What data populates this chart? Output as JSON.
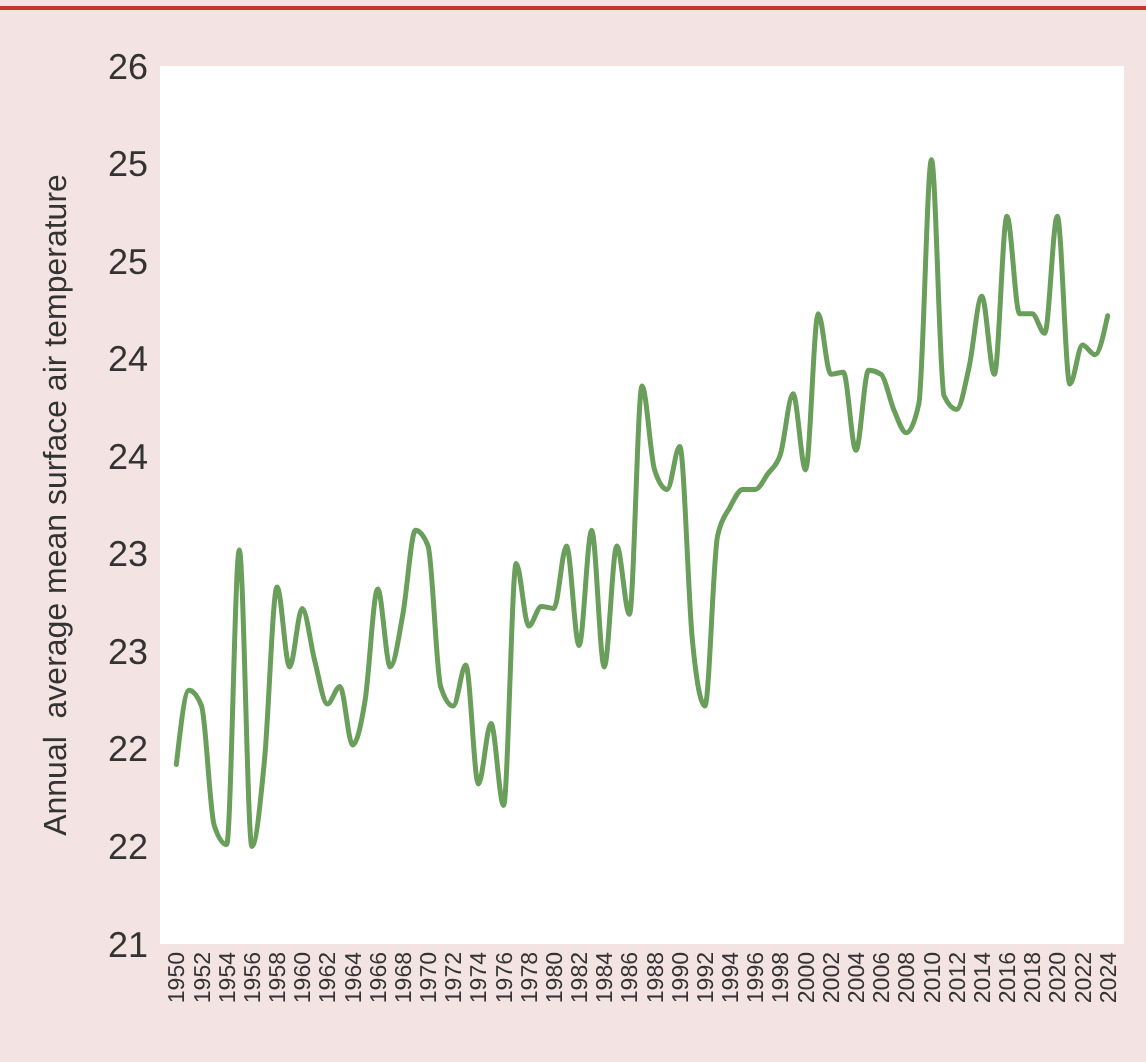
{
  "chart_data": {
    "type": "line",
    "ylabel": "Annual  average mean surface air temperature",
    "x": [
      1950,
      1951,
      1952,
      1953,
      1954,
      1955,
      1956,
      1957,
      1958,
      1959,
      1960,
      1961,
      1962,
      1963,
      1964,
      1965,
      1966,
      1967,
      1968,
      1969,
      1970,
      1971,
      1972,
      1973,
      1974,
      1975,
      1976,
      1977,
      1978,
      1979,
      1980,
      1981,
      1982,
      1983,
      1984,
      1985,
      1986,
      1987,
      1988,
      1989,
      1990,
      1991,
      1992,
      1993,
      1994,
      1995,
      1996,
      1997,
      1998,
      1999,
      2000,
      2001,
      2002,
      2003,
      2004,
      2005,
      2006,
      2007,
      2008,
      2009,
      2010,
      2011,
      2012,
      2013,
      2014,
      2015,
      2016,
      2017,
      2018,
      2019,
      2020,
      2021,
      2022,
      2023,
      2024
    ],
    "series": [
      {
        "color": "#6a9e5b",
        "values": [
          21.92,
          22.3,
          22.22,
          21.61,
          21.51,
          23.02,
          21.5,
          21.94,
          22.83,
          22.42,
          22.72,
          22.45,
          22.23,
          22.32,
          22.02,
          22.25,
          22.82,
          22.42,
          22.69,
          23.12,
          23.04,
          22.32,
          22.22,
          22.43,
          21.82,
          22.13,
          21.71,
          22.95,
          22.63,
          22.73,
          22.72,
          23.04,
          22.53,
          23.12,
          22.42,
          23.04,
          22.69,
          23.86,
          23.43,
          23.33,
          23.55,
          22.56,
          22.22,
          23.09,
          23.24,
          23.33,
          23.33,
          23.41,
          23.51,
          23.82,
          23.43,
          24.23,
          23.92,
          23.93,
          23.53,
          23.94,
          23.92,
          23.74,
          23.62,
          23.77,
          25.02,
          23.81,
          23.74,
          23.96,
          24.32,
          23.92,
          24.73,
          24.23,
          24.23,
          24.13,
          24.73,
          23.87,
          24.07,
          24.02,
          24.22
        ]
      }
    ],
    "xlim": [
      1948.7,
      2025.3
    ],
    "xticks": [
      1950,
      1952,
      1954,
      1956,
      1958,
      1960,
      1962,
      1964,
      1966,
      1968,
      1970,
      1972,
      1974,
      1976,
      1978,
      1980,
      1982,
      1984,
      1986,
      1988,
      1990,
      1992,
      1994,
      1996,
      1998,
      2000,
      2002,
      2004,
      2006,
      2008,
      2010,
      2012,
      2014,
      2016,
      2018,
      2020,
      2022,
      2024
    ],
    "ylim": [
      21,
      25.5
    ],
    "yticks": [
      {
        "value": 21,
        "label": "21"
      },
      {
        "value": 21.5,
        "label": "22"
      },
      {
        "value": 22,
        "label": "22"
      },
      {
        "value": 22.5,
        "label": "23"
      },
      {
        "value": 23,
        "label": "23"
      },
      {
        "value": 23.5,
        "label": "24"
      },
      {
        "value": 24,
        "label": "24"
      },
      {
        "value": 24.5,
        "label": "25"
      },
      {
        "value": 25,
        "label": "25"
      },
      {
        "value": 25.5,
        "label": "26"
      }
    ],
    "grid": false,
    "marker": "none",
    "line_style": "solid"
  }
}
